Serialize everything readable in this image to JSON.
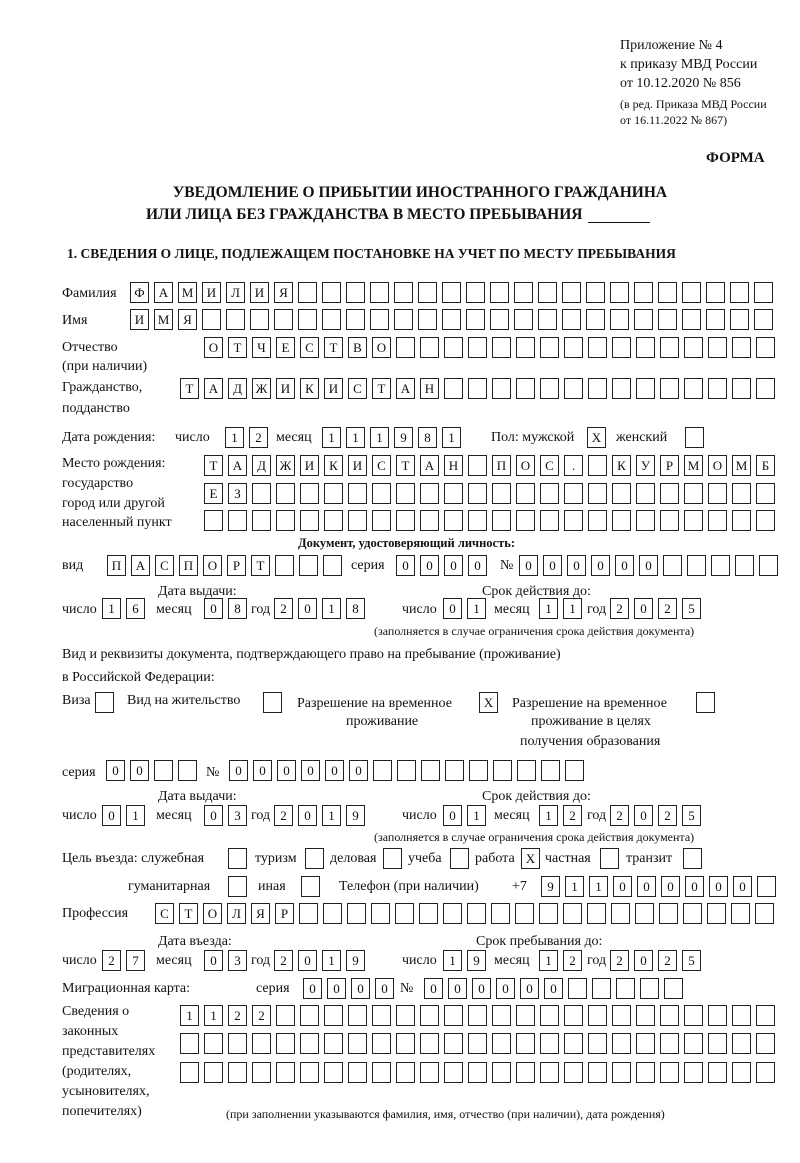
{
  "header": {
    "appendix": "Приложение № 4",
    "order": "к приказу МВД России",
    "order_date": "от 10.12.2020 № 856",
    "edition": "(в ред. Приказа МВД России",
    "edition_date": "от 16.11.2022 № 867)",
    "form_label": "ФОРМА"
  },
  "title": {
    "line1": "УВЕДОМЛЕНИЕ О ПРИБЫТИИ ИНОСТРАННОГО ГРАЖДАНИНА",
    "line2": "ИЛИ ЛИЦА БЕЗ ГРАЖДАНСТВА В МЕСТО ПРЕБЫВАНИЯ"
  },
  "section1": "1. СВЕДЕНИЯ О ЛИЦЕ, ПОДЛЕЖАЩЕМ ПОСТАНОВКЕ НА УЧЕТ ПО МЕСТУ ПРЕБЫВАНИЯ",
  "labels": {
    "surname": "Фамилия",
    "name": "Имя",
    "patronymic": "Отчество",
    "patronymic_note": "(при наличии)",
    "citizenship1": "Гражданство,",
    "citizenship2": "подданство",
    "birth_date": "Дата рождения:",
    "day": "число",
    "month": "месяц",
    "year": "год",
    "sex": "Пол: мужской",
    "female": "женский",
    "birthplace1": "Место рождения:",
    "birthplace2": "государство",
    "birthplace3": "город или другой",
    "birthplace4": "населенный пункт",
    "id_doc": "Документ, удостоверяющий личность:",
    "kind": "вид",
    "series": "серия",
    "number": "№",
    "issue_date": "Дата выдачи:",
    "valid_until": "Срок действия до:",
    "valid_note": "(заполняется в случае ограничения срока действия документа)",
    "stay_doc1": "Вид и реквизиты документа, подтверждающего право на пребывание (проживание)",
    "stay_doc2": "в Российской Федерации:",
    "visa": "Виза",
    "residence": "Вид на жительство",
    "trp1": "Разрешение на временное",
    "trp2": "проживание",
    "trp_edu1": "Разрешение на временное",
    "trp_edu2": "проживание в целях",
    "trp_edu3": "получения образования",
    "purpose": "Цель въезда: служебная",
    "tourism": "туризм",
    "business": "деловая",
    "study": "учеба",
    "work": "работа",
    "private": "частная",
    "transit": "транзит",
    "humanitarian": "гуманитарная",
    "other": "иная",
    "phone": "Телефон (при наличии)",
    "phone_prefix": "+7",
    "profession": "Профессия",
    "entry_date": "Дата въезда:",
    "stay_until": "Срок пребывания до:",
    "migration_card": "Миграционная карта:",
    "reps1": "Сведения о",
    "reps2": "законных",
    "reps3": "представителях",
    "reps4": "(родителях,",
    "reps5": "усыновителях,",
    "reps6": "попечителях)",
    "reps_note": "(при заполнении указываются фамилия, имя, отчество (при наличии), дата рождения)"
  },
  "values": {
    "surname": "ФАМИЛИЯ",
    "name": "ИМЯ",
    "patronymic": "ОТЧЕСТВО",
    "citizenship": "ТАДЖИКИСТАН",
    "birth_day": "12",
    "birth_month": "11",
    "birth_year": "1981",
    "sex_male": "X",
    "sex_female": "",
    "birthplace1": "ТАДЖИКИСТАН ПОС. КУРМОМБ",
    "birthplace2": "ЕЗ",
    "birthplace3": "",
    "id_kind": "ПАСПОРТ",
    "id_series": "0000",
    "id_number": "000000",
    "id_issue_day": "16",
    "id_issue_month": "08",
    "id_issue_year": "2018",
    "id_valid_day": "01",
    "id_valid_month": "11",
    "id_valid_year": "2025",
    "visa": "",
    "residence": "",
    "trp": "X",
    "trp_edu": "",
    "stay_series": "00",
    "stay_number": "000000",
    "stay_issue_day": "01",
    "stay_issue_month": "03",
    "stay_issue_year": "2019",
    "stay_valid_day": "01",
    "stay_valid_month": "12",
    "stay_valid_year": "2025",
    "purpose_official": "",
    "purpose_tourism": "",
    "purpose_business": "",
    "purpose_study": "",
    "purpose_work": "X",
    "purpose_private": "",
    "purpose_transit": "",
    "purpose_humanitarian": "",
    "purpose_other": "",
    "phone": "911000000",
    "profession": "СТОЛЯР",
    "entry_day": "27",
    "entry_month": "03",
    "entry_year": "2019",
    "stay_until_day": "19",
    "stay_until_month": "12",
    "stay_until_year": "2025",
    "mc_series": "0000",
    "mc_number": "000000",
    "reps1": "1122",
    "reps2": "",
    "reps3": ""
  }
}
